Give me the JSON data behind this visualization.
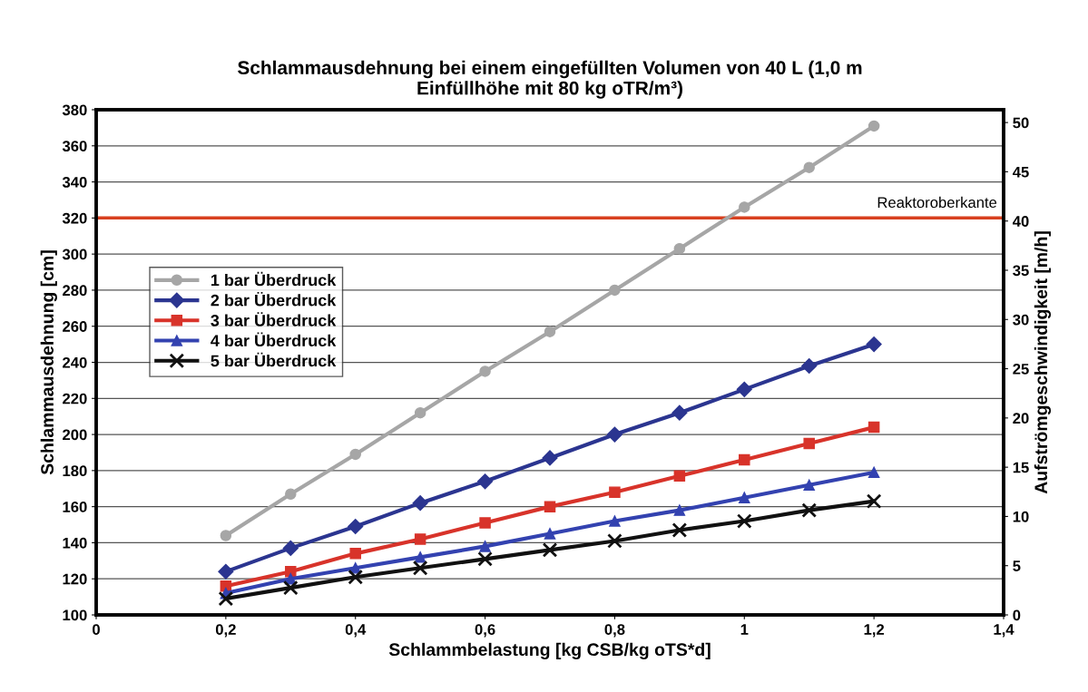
{
  "chart_data": {
    "type": "line",
    "title": "Schlammausdehnung bei einem eingefüllten Volumen von 40 L (1,0 m\nEinfüllhöhe mit 80 kg oTR/m³)",
    "xlabel": "Schlammbelastung [kg CSB/kg oTS*d]",
    "ylabel": "Schlammausdehnung [cm]",
    "y2label": "Aufströmgeschwindigkeit [m/h]",
    "x": [
      0.2,
      0.3,
      0.4,
      0.5,
      0.6,
      0.7,
      0.8,
      0.9,
      1.0,
      1.1,
      1.2
    ],
    "series": [
      {
        "name": "1 bar Überdruck",
        "color": "#a6a6a6",
        "marker": "circle",
        "values": [
          144,
          167,
          189,
          212,
          235,
          257,
          280,
          303,
          326,
          348,
          371
        ]
      },
      {
        "name": "2 bar Überdruck",
        "color": "#2b3590",
        "marker": "diamond",
        "values": [
          124,
          137,
          149,
          162,
          174,
          187,
          200,
          212,
          225,
          238,
          250
        ]
      },
      {
        "name": "3 bar Überdruck",
        "color": "#d8332a",
        "marker": "square",
        "values": [
          116,
          124,
          134,
          142,
          151,
          160,
          168,
          177,
          186,
          195,
          204
        ]
      },
      {
        "name": "4 bar Überdruck",
        "color": "#3342b0",
        "marker": "triangle",
        "values": [
          112,
          120,
          126,
          132,
          138,
          145,
          152,
          158,
          165,
          172,
          179
        ]
      },
      {
        "name": "5 bar Überdruck",
        "color": "#111111",
        "marker": "cross",
        "values": [
          109,
          115,
          121,
          126,
          131,
          136,
          141,
          147,
          152,
          158,
          163
        ]
      }
    ],
    "xlim": [
      0,
      1.4
    ],
    "xticks": [
      0,
      {
        "value": 0.2,
        "label": "0,2"
      },
      {
        "value": 0.4,
        "label": "0,4"
      },
      {
        "value": 0.6,
        "label": "0,6"
      },
      {
        "value": 0.8,
        "label": "0,8"
      },
      1,
      {
        "value": 1.2,
        "label": "1,2"
      },
      {
        "value": 1.4,
        "label": "1,4"
      }
    ],
    "ylim": [
      100,
      380
    ],
    "yticks": [
      100,
      120,
      140,
      160,
      180,
      200,
      220,
      240,
      260,
      280,
      300,
      320,
      340,
      360,
      380
    ],
    "y2lim": [
      0,
      51.3
    ],
    "y2ticks": [
      0,
      5,
      10,
      15,
      20,
      25,
      30,
      35,
      40,
      45,
      50
    ],
    "ref_lines": [
      {
        "axis": "y",
        "value": 320,
        "label": "Reaktoroberkante",
        "color": "#d8401f"
      }
    ],
    "grid": "y",
    "legend": "center left",
    "line_style": "solid"
  }
}
